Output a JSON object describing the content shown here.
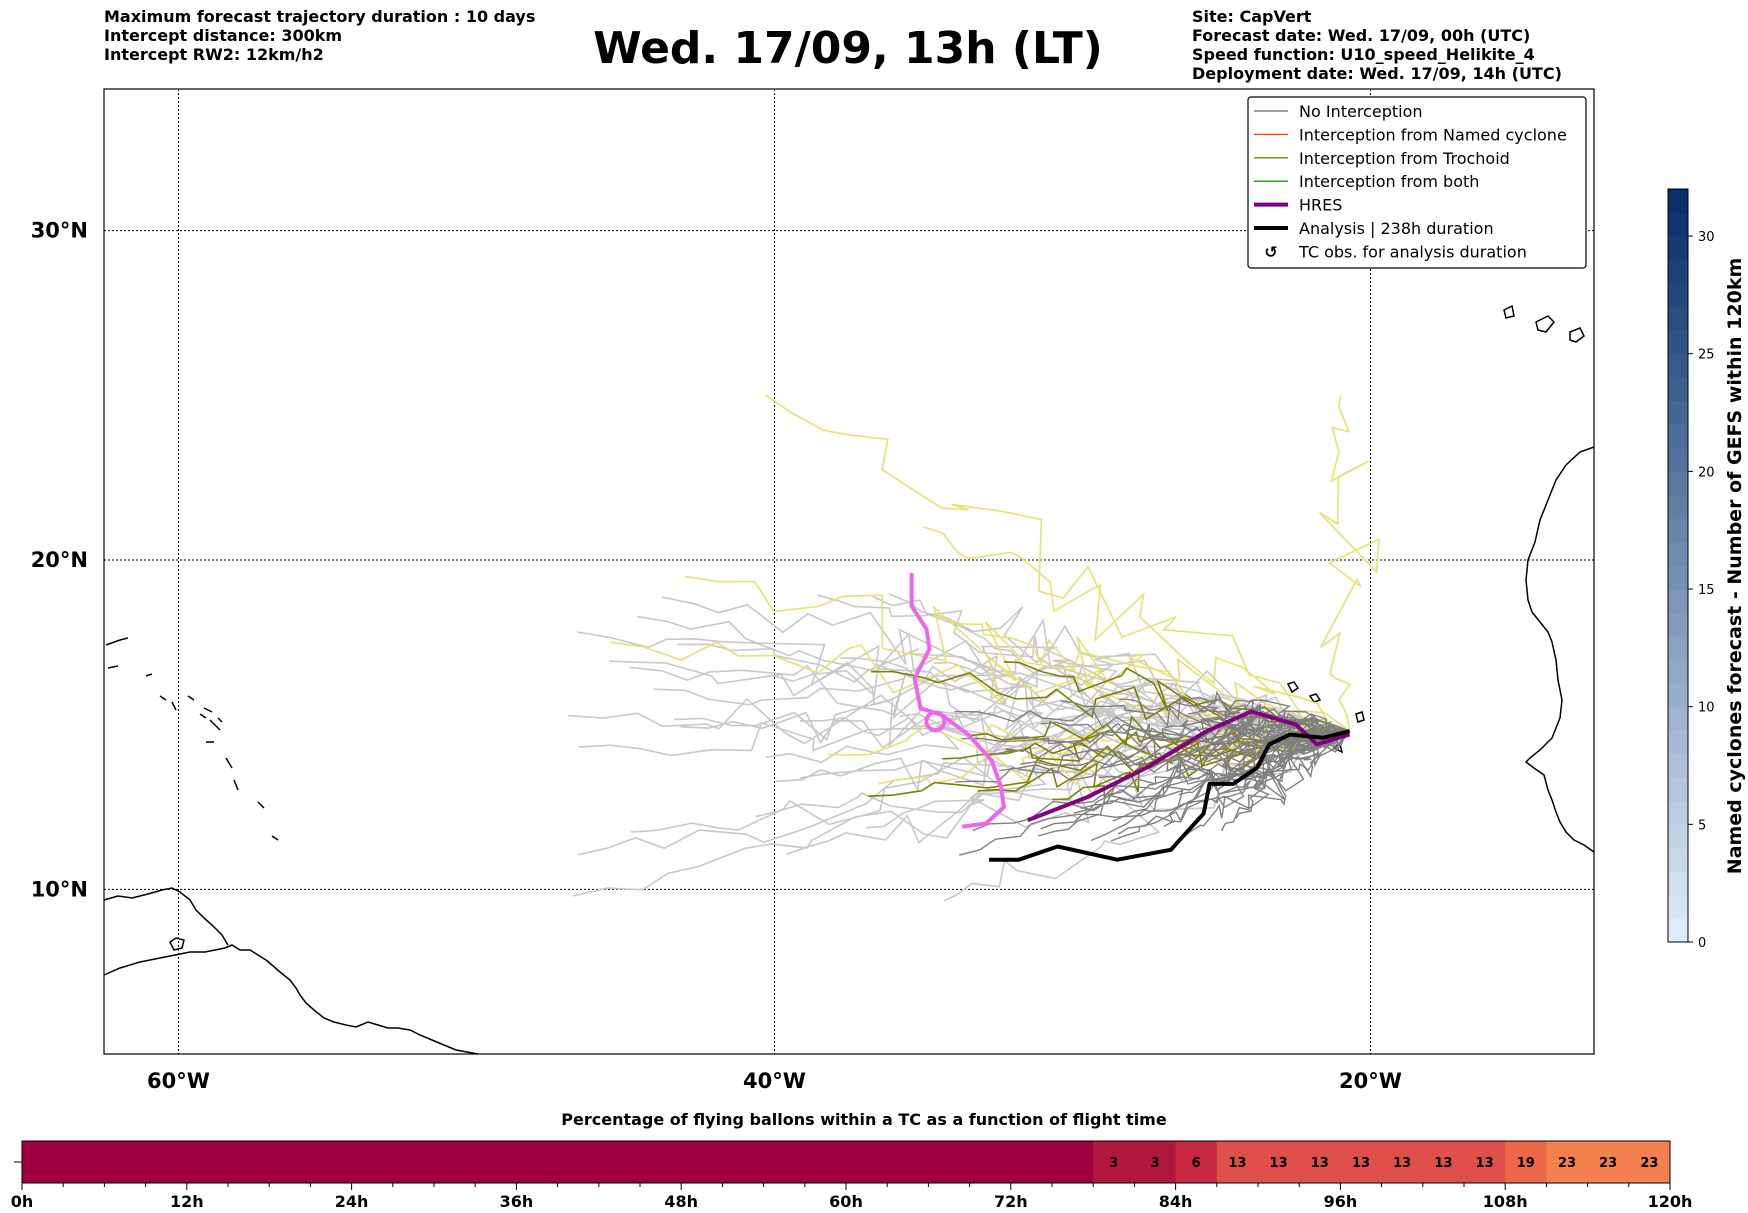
{
  "header": {
    "left": [
      "Maximum forecast trajectory duration : 10 days",
      "Intercept distance: 300km",
      "Intercept RW2: 12km/h2"
    ],
    "title": "Wed. 17/09, 13h (LT)",
    "right": [
      "Site: CapVert",
      "Forecast date: Wed. 17/09, 00h (UTC)",
      "Speed function: U10_speed_Helikite_4",
      "Deployment date: Wed. 17/09, 14h (UTC)"
    ]
  },
  "colors": {
    "no_interception": "#808080",
    "named_cyclone": "#ff4500",
    "trochoid": "#808000",
    "both": "#228b22",
    "hres": "#800080",
    "hres_light": "#ee66ee",
    "analysis": "#000000",
    "ens_light_gray": "#c8c8c8",
    "ens_yellow": "#e8e070",
    "bar_dark": "#9e0040",
    "bar_mid": "#e0504a",
    "bar_orange": "#f48050"
  },
  "legend": {
    "items": [
      {
        "label": "No Interception",
        "style": "thin",
        "color_key": "no_interception"
      },
      {
        "label": "Interception from Named cyclone",
        "style": "thin",
        "color_key": "named_cyclone"
      },
      {
        "label": "Interception from Trochoid",
        "style": "thin",
        "color_key": "trochoid"
      },
      {
        "label": "Interception from both",
        "style": "thin",
        "color_key": "both"
      },
      {
        "label": "HRES",
        "style": "thick",
        "color_key": "hres"
      },
      {
        "label": "Analysis | 238h duration",
        "style": "thick",
        "color_key": "analysis"
      },
      {
        "label": "TC obs. for analysis duration",
        "style": "symbol",
        "color_key": "analysis"
      }
    ],
    "placement": "top-right"
  },
  "colorbar": {
    "label": "Named cyclones forecast - Number of GEFS within 120km",
    "ticks": [
      "0",
      "5",
      "10",
      "15",
      "20",
      "25",
      "30"
    ]
  },
  "chart_data": [
    {
      "type": "map",
      "xlim": [
        -62.5,
        -12.5
      ],
      "ylim": [
        5,
        34.3
      ],
      "x_ticks": [
        {
          "value": -60,
          "label": "60°W"
        },
        {
          "value": -40,
          "label": "40°W"
        },
        {
          "value": -20,
          "label": "20°W"
        }
      ],
      "y_ticks": [
        {
          "value": 10,
          "label": "10°N"
        },
        {
          "value": 20,
          "label": "20°N"
        },
        {
          "value": 30,
          "label": "30°N"
        }
      ],
      "grid": true,
      "series": [
        {
          "name": "HRES",
          "color_key": "hres",
          "points": [
            [
              -31.5,
              12.1
            ],
            [
              -29.5,
              12.8
            ],
            [
              -27.5,
              13.7
            ],
            [
              -25.5,
              14.8
            ],
            [
              -24.0,
              15.4
            ],
            [
              -22.5,
              15.0
            ],
            [
              -21.8,
              14.4
            ],
            [
              -20.7,
              14.7
            ]
          ]
        },
        {
          "name": "HRES",
          "color_key": "hres_light",
          "points": [
            [
              -35.4,
              19.6
            ],
            [
              -35.4,
              18.6
            ],
            [
              -34.9,
              17.9
            ],
            [
              -34.8,
              17.3
            ],
            [
              -35.3,
              16.4
            ],
            [
              -35.1,
              15.5
            ],
            [
              -34.4,
              15.3
            ],
            [
              -33.5,
              14.7
            ],
            [
              -32.7,
              13.9
            ],
            [
              -32.4,
              13.1
            ],
            [
              -32.3,
              12.5
            ],
            [
              -32.9,
              12.0
            ],
            [
              -33.7,
              11.9
            ]
          ]
        },
        {
          "name": "Analysis | 238h duration",
          "color_key": "analysis",
          "points": [
            [
              -32.8,
              10.9
            ],
            [
              -31.8,
              10.9
            ],
            [
              -30.5,
              11.3
            ],
            [
              -28.5,
              10.9
            ],
            [
              -26.7,
              11.2
            ],
            [
              -25.6,
              12.3
            ],
            [
              -25.4,
              13.2
            ],
            [
              -24.6,
              13.2
            ],
            [
              -23.8,
              13.7
            ],
            [
              -23.4,
              14.4
            ],
            [
              -22.7,
              14.7
            ],
            [
              -21.6,
              14.6
            ],
            [
              -20.7,
              14.8
            ]
          ]
        }
      ],
      "ensemble_tracks": {
        "grey": 40,
        "light_gray": 30,
        "yellow": 8,
        "olive": 8
      }
    },
    {
      "type": "heatmap",
      "title": "Percentage of flying ballons within a TC as a function of flight time",
      "x_ticks": [
        "0h",
        "12h",
        "24h",
        "36h",
        "48h",
        "60h",
        "72h",
        "84h",
        "96h",
        "108h",
        "120h"
      ],
      "bin_hours": 3,
      "cells": [
        {
          "start": 0,
          "end": 78,
          "value": 0,
          "label": ""
        },
        {
          "start": 78,
          "end": 81,
          "value": 3,
          "label": "3"
        },
        {
          "start": 81,
          "end": 84,
          "value": 3,
          "label": "3"
        },
        {
          "start": 84,
          "end": 87,
          "value": 6,
          "label": "6"
        },
        {
          "start": 87,
          "end": 90,
          "value": 13,
          "label": "13"
        },
        {
          "start": 90,
          "end": 93,
          "value": 13,
          "label": "13"
        },
        {
          "start": 93,
          "end": 96,
          "value": 13,
          "label": "13"
        },
        {
          "start": 96,
          "end": 99,
          "value": 13,
          "label": "13"
        },
        {
          "start": 99,
          "end": 102,
          "value": 13,
          "label": "13"
        },
        {
          "start": 102,
          "end": 105,
          "value": 13,
          "label": "13"
        },
        {
          "start": 105,
          "end": 108,
          "value": 13,
          "label": "13"
        },
        {
          "start": 108,
          "end": 111,
          "value": 19,
          "label": "19"
        },
        {
          "start": 111,
          "end": 114,
          "value": 23,
          "label": "23"
        },
        {
          "start": 114,
          "end": 117,
          "value": 23,
          "label": "23"
        },
        {
          "start": 117,
          "end": 120,
          "value": 23,
          "label": "23"
        }
      ]
    }
  ]
}
